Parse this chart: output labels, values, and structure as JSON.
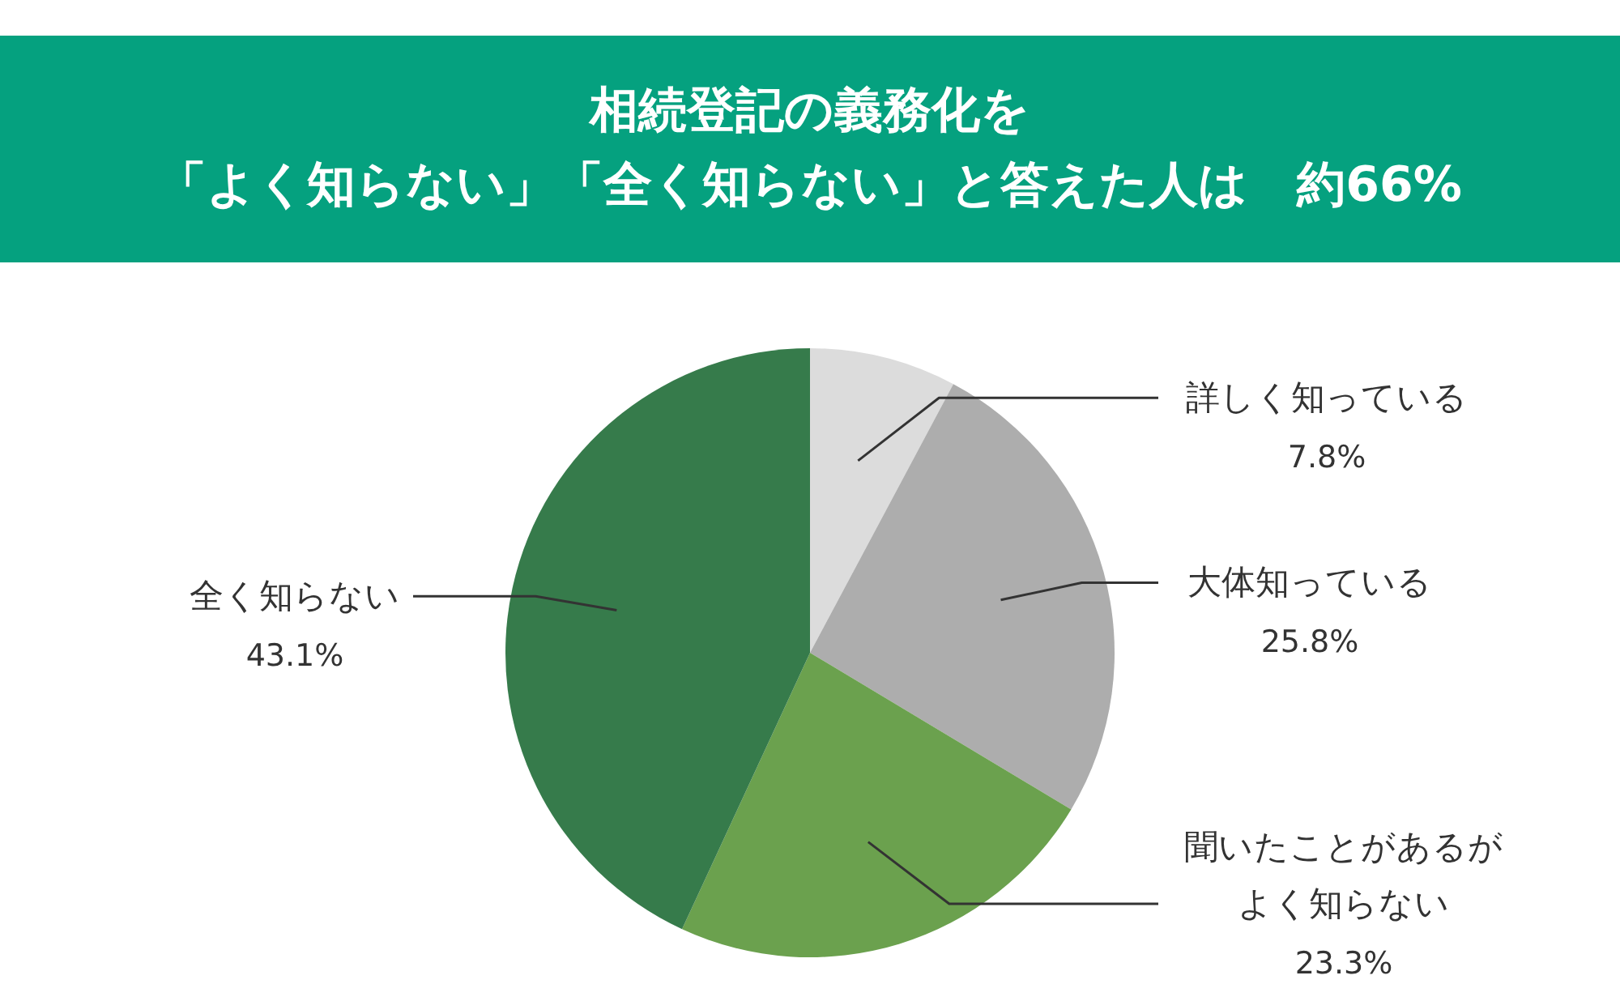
{
  "chart_data": {
    "type": "pie",
    "title": "相続登記の義務化を",
    "subtitle": "「よく知らない」「全く知らない」と答えた人は　約66%",
    "categories": [
      "詳しく知っている",
      "大体知っている",
      "聞いたことがあるがよく知らない",
      "全く知らない"
    ],
    "values": [
      7.8,
      25.8,
      23.3,
      43.1
    ],
    "value_labels": [
      "7.8%",
      "25.8%",
      "23.3%",
      "43.1%"
    ],
    "colors": [
      "#dcdcdc",
      "#adadad",
      "#6ba14e",
      "#367b4b"
    ],
    "legend": false
  }
}
